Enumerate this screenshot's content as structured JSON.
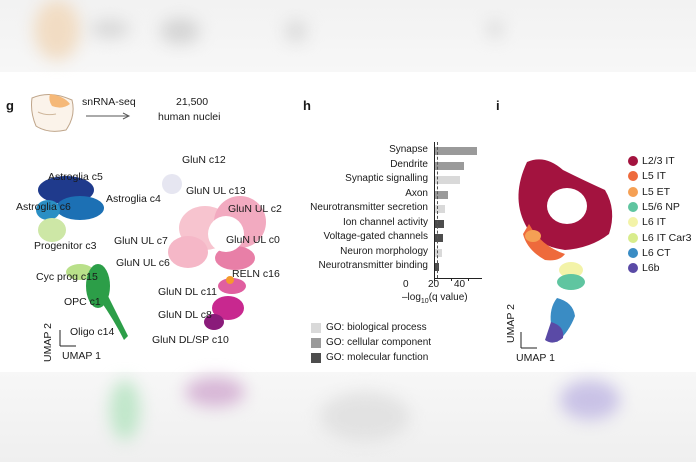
{
  "panels": {
    "g": {
      "letter": "g",
      "method": "snRNA-seq",
      "nuclei_count": "21,500",
      "nuclei_label": "human nuclei",
      "cluster_labels": [
        "Astroglia c5",
        "Astroglia c6",
        "Astroglia c4",
        "Progenitor c3",
        "Cyc prog c15",
        "OPC c1",
        "Oligo c14",
        "GluN c12",
        "GluN UL c13",
        "GluN UL c2",
        "GluN UL c7",
        "GluN UL c0",
        "GluN UL c6",
        "RELN c16",
        "GluN DL c11",
        "GluN DL c8",
        "GluN DL/SP c10"
      ],
      "axis_y": "UMAP 2",
      "axis_x": "UMAP 1"
    },
    "h": {
      "letter": "h",
      "xlabel_prefix": "–log",
      "xlabel_sub": "10",
      "xlabel_suffix": "(q value)",
      "ticks": [
        "0",
        "20",
        "40"
      ],
      "legend": [
        {
          "label": "GO: biological process",
          "color": "#d9d9d9"
        },
        {
          "label": "GO: cellular component",
          "color": "#9a9a9a"
        },
        {
          "label": "GO: molecular function",
          "color": "#4d4d4d"
        }
      ]
    },
    "i": {
      "letter": "i",
      "axis_y": "UMAP 2",
      "axis_x": "UMAP 1",
      "legend": [
        {
          "label": "L2/3 IT",
          "color": "#a3133f"
        },
        {
          "label": "L5 IT",
          "color": "#ee6a3c"
        },
        {
          "label": "L5 ET",
          "color": "#f5a054"
        },
        {
          "label": "L5/6 NP",
          "color": "#5fc5a0"
        },
        {
          "label": "L6 IT",
          "color": "#f3f3a8"
        },
        {
          "label": "L6 IT Car3",
          "color": "#d8ec8c"
        },
        {
          "label": "L6 CT",
          "color": "#3a8cc4"
        },
        {
          "label": "L6b",
          "color": "#5a4aa6"
        }
      ]
    }
  },
  "chart_data": {
    "type": "bar",
    "orientation": "horizontal",
    "categories": [
      "Synapse",
      "Dendrite",
      "Synaptic signalling",
      "Axon",
      "Neurotransmitter secretion",
      "Ion channel activity",
      "Voltage-gated channels",
      "Neuron morphology",
      "Neurotransmitter binding"
    ],
    "values": [
      50,
      35,
      30,
      16,
      12,
      11,
      10,
      8,
      5
    ],
    "groups": [
      "cellular component",
      "cellular component",
      "biological process",
      "cellular component",
      "biological process",
      "molecular function",
      "molecular function",
      "biological process",
      "molecular function"
    ],
    "group_colors": {
      "biological process": "#d9d9d9",
      "cellular component": "#9a9a9a",
      "molecular function": "#4d4d4d"
    },
    "xlim": [
      0,
      50
    ],
    "xticks": [
      0,
      20,
      40
    ],
    "reference_line": "dashed vertical at significance threshold near 0"
  }
}
